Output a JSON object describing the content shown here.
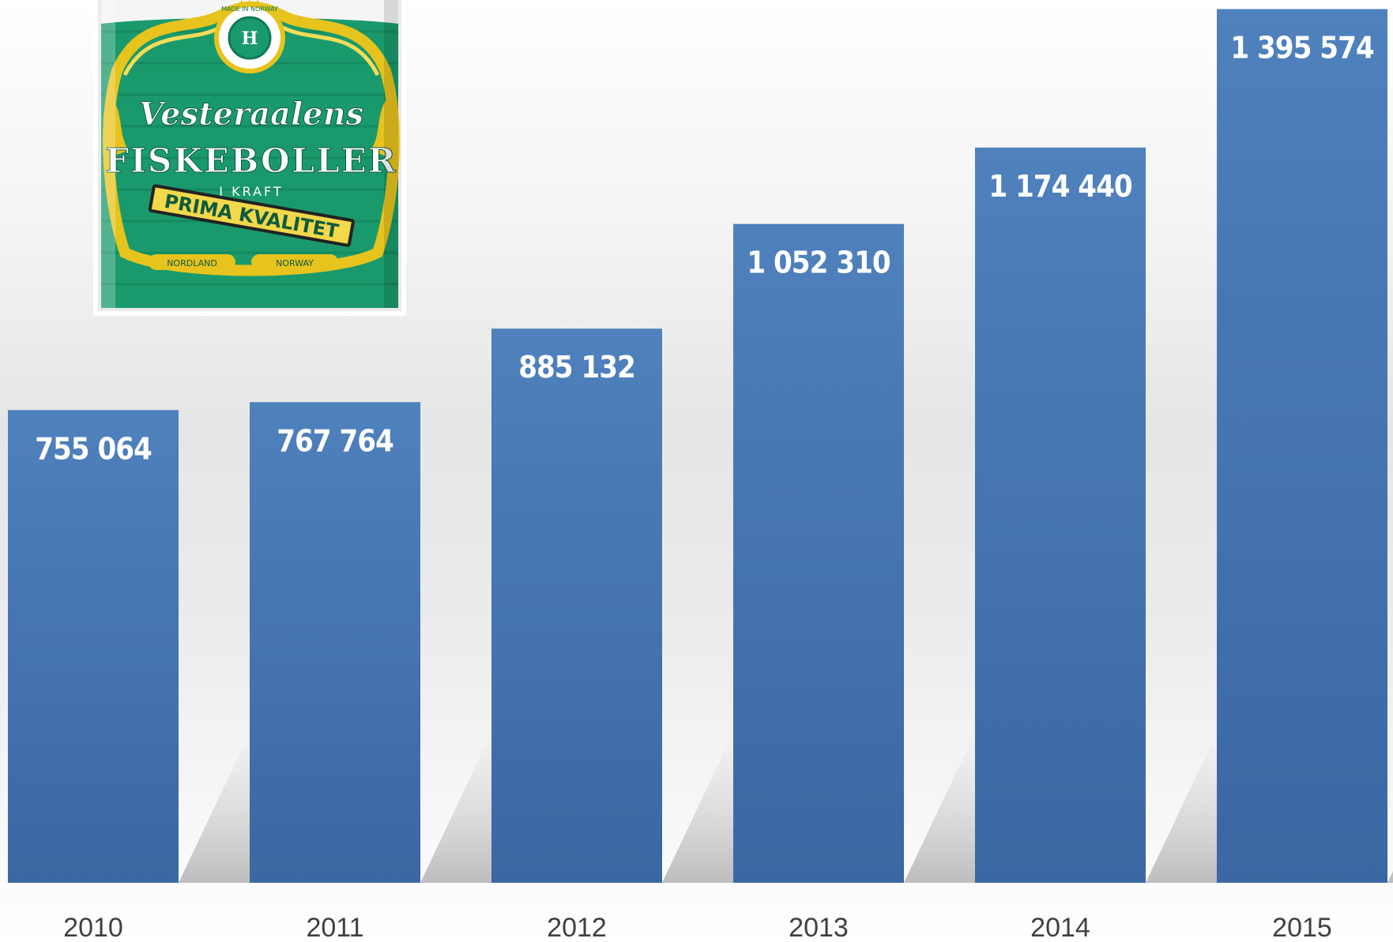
{
  "chart_data": {
    "type": "bar",
    "categories": [
      "2010",
      "2011",
      "2012",
      "2013",
      "2014",
      "2015"
    ],
    "values": [
      755064,
      767764,
      885132,
      1052310,
      1174440,
      1395574
    ],
    "value_labels": [
      "755 064",
      "767 764",
      "885 132",
      "1 052 310",
      "1 174 440",
      "1 395 574"
    ],
    "title": "",
    "xlabel": "",
    "ylabel": "",
    "ylim": [
      0,
      1400000
    ],
    "grid": false,
    "legend": "none",
    "colors": {
      "bar_top": "#4f81bd",
      "bar_bottom": "#3b67a3",
      "label": "#ffffff",
      "tick": "#404040"
    }
  },
  "product_image": {
    "brand": "Vesteraalens",
    "product": "FISKEBOLLER",
    "subtitle": "I KRAFT",
    "ribbon": "PRIMA KVALITET",
    "badge": "MADE IN NORWAY",
    "origin_left": "NORDLAND",
    "origin_right": "NORWAY",
    "colors": {
      "can_green": "#128a62",
      "gold": "#e7c31e",
      "white": "#ffffff"
    }
  }
}
